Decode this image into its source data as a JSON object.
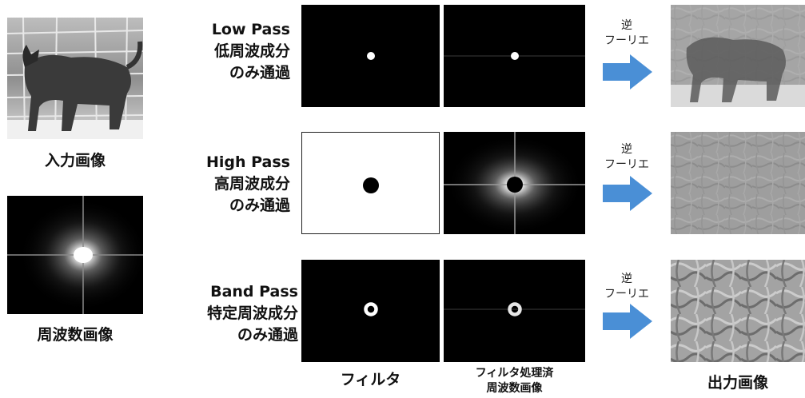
{
  "left": {
    "input_label": "入力画像",
    "spectrum_label": "周波数画像"
  },
  "rows": [
    {
      "title": "Low Pass",
      "line2": "低周波成分",
      "line3": "のみ通過",
      "arrow_line1": "逆",
      "arrow_line2": "フーリエ"
    },
    {
      "title": "High Pass",
      "line2": "高周波成分",
      "line3": "のみ通過",
      "arrow_line1": "逆",
      "arrow_line2": "フーリエ"
    },
    {
      "title": "Band Pass",
      "line2": "特定周波成分",
      "line3": "のみ通過",
      "arrow_line1": "逆",
      "arrow_line2": "フーリエ"
    }
  ],
  "columns": {
    "filter": "フィルタ",
    "filtered_line1": "フィルタ処理済",
    "filtered_line2": "周波数画像",
    "output": "出力画像"
  },
  "colors": {
    "arrow": "#4a8fd6",
    "filter_dark": "#000000",
    "filter_light": "#ffffff"
  }
}
